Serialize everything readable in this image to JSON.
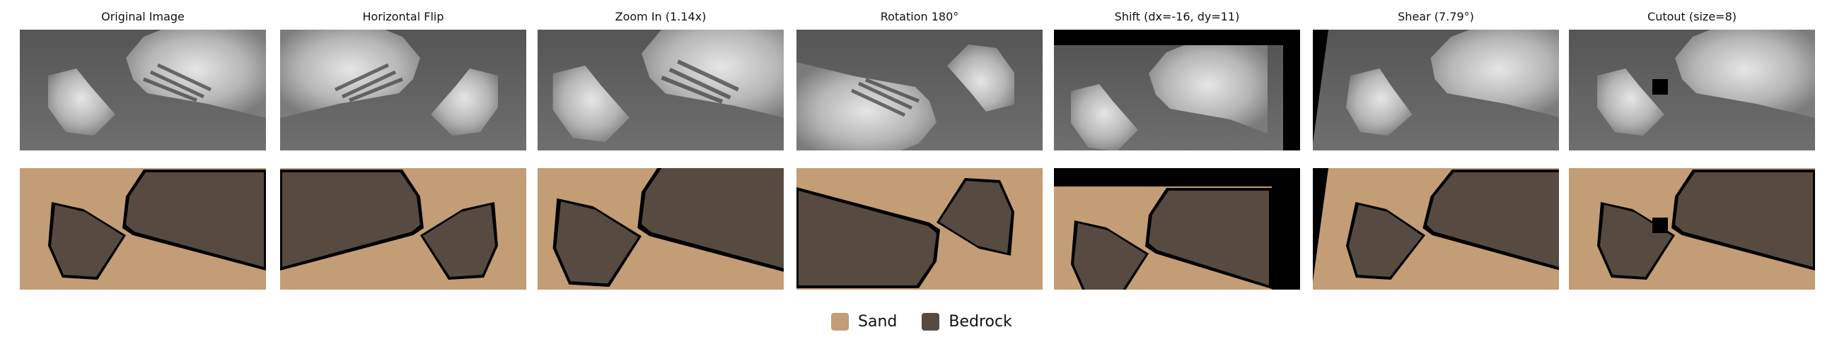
{
  "columns": [
    {
      "title": "Original Image"
    },
    {
      "title": "Horizontal Flip"
    },
    {
      "title": "Zoom In (1.14x)"
    },
    {
      "title": "Rotation 180°"
    },
    {
      "title": "Shift (dx=-16, dy=11)"
    },
    {
      "title": "Shear (7.79°)"
    },
    {
      "title": "Cutout (size=8)"
    }
  ],
  "legend": {
    "items": [
      {
        "label": "Sand",
        "color": "#c29d76"
      },
      {
        "label": "Bedrock",
        "color": "#574b41"
      }
    ]
  },
  "colors": {
    "sand": "#c29d76",
    "bedrock": "#574b41",
    "border": "#000000",
    "photo_bg": "#666666",
    "rock_light": "#cfcfcf"
  }
}
